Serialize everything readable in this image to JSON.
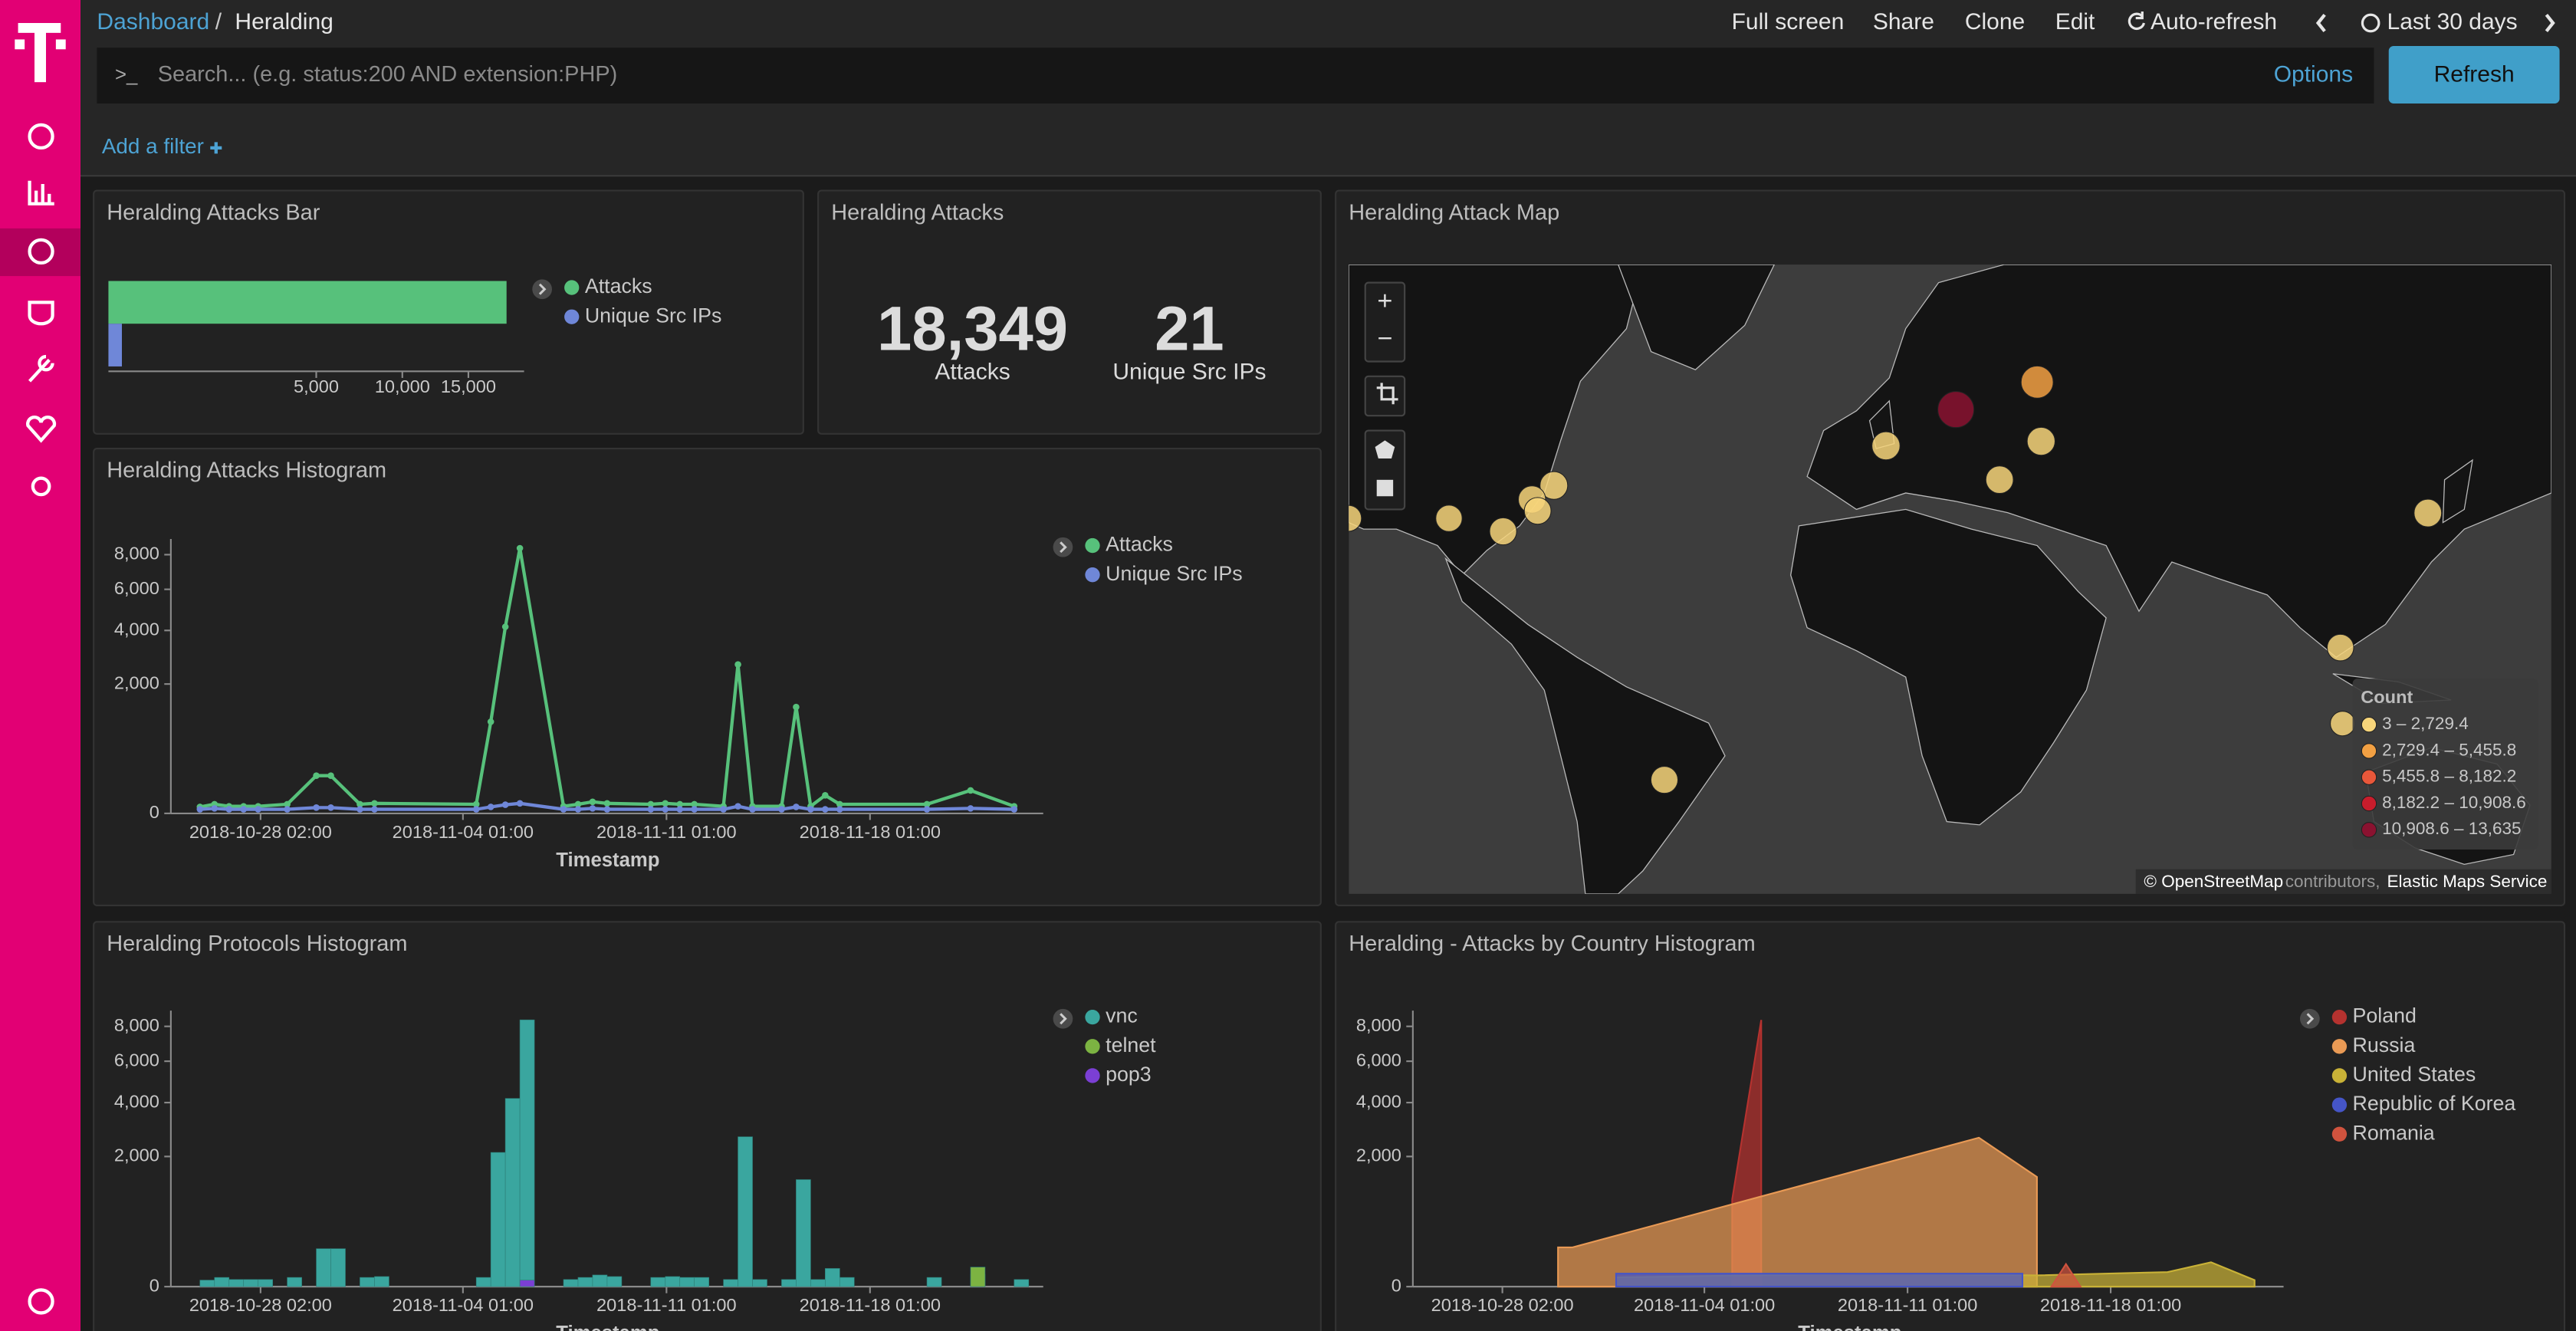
{
  "nav": {
    "breadcrumb": [
      "Dashboard",
      "Heralding"
    ],
    "separator": "/",
    "menu": [
      "Full screen",
      "Share",
      "Clone",
      "Edit",
      "Auto-refresh",
      "Last 30 days"
    ]
  },
  "query": {
    "prompt": ">_",
    "placeholder": "Search... (e.g. status:200 AND extension:PHP)",
    "options": "Options",
    "refresh": "Refresh"
  },
  "filter": {
    "add": "Add a filter"
  },
  "chart_data": [
    {
      "type": "hbar",
      "title": "Heralding Attacks Bar",
      "scale": "sqrt",
      "xlim": [
        0,
        20000
      ],
      "xticks": [
        {
          "value": 5000,
          "label": "5,000"
        },
        {
          "value": 10000,
          "label": "10,000"
        },
        {
          "value": 15000,
          "label": "15,000"
        }
      ],
      "series": [
        {
          "name": "Attacks",
          "color": "#57c17b",
          "values": [
            18349
          ]
        },
        {
          "name": "Unique Src IPs",
          "color": "#6f87d8",
          "values": [
            21
          ]
        }
      ]
    },
    {
      "type": "metric",
      "title": "Heralding Attacks",
      "categories": [
        "Attacks",
        "Unique Src IPs"
      ],
      "values": [
        18349,
        21
      ],
      "value_labels": [
        "18,349",
        "21"
      ]
    },
    {
      "type": "map",
      "title": "Heralding Attack Map",
      "controls": [
        "+",
        "−"
      ],
      "legend_title": "Count",
      "legend": [
        {
          "from": 3,
          "to": 2729.4,
          "label": "3 – 2,729.4",
          "color": "#f7d57a"
        },
        {
          "from": 2729.4,
          "to": 5455.8,
          "label": "2,729.4 – 5,455.8",
          "color": "#f2a043"
        },
        {
          "from": 5455.8,
          "to": 8182.2,
          "label": "5,455.8 – 8,182.2",
          "color": "#e8573a"
        },
        {
          "from": 8182.2,
          "to": 10908.6,
          "label": "8,182.2 – 10,908.6",
          "color": "#c81d2c"
        },
        {
          "from": 10908.6,
          "to": 13635,
          "label": "10,908.6 – 13,635",
          "color": "#8a1230"
        }
      ],
      "points": [
        {
          "lon": 19,
          "lat": 52,
          "value": 13635
        },
        {
          "lon": 37.6,
          "lat": 55.7,
          "value": 3200
        },
        {
          "lon": 3,
          "lat": 46.6,
          "value": 310
        },
        {
          "lon": 38.5,
          "lat": 47.3,
          "value": 260
        },
        {
          "lon": 29,
          "lat": 41,
          "value": 180
        },
        {
          "lon": -73,
          "lat": 40,
          "value": 220
        },
        {
          "lon": -78,
          "lat": 37.5,
          "value": 150
        },
        {
          "lon": -76.7,
          "lat": 35.4,
          "value": 90
        },
        {
          "lon": -84.6,
          "lat": 31.5,
          "value": 120
        },
        {
          "lon": -97,
          "lat": 34,
          "value": 60
        },
        {
          "lon": -120,
          "lat": 34,
          "value": 40
        },
        {
          "lon": 127,
          "lat": 35,
          "value": 200
        },
        {
          "lon": 107,
          "lat": 6.6,
          "value": 70
        },
        {
          "lon": 107.5,
          "lat": -10.7,
          "value": 3
        },
        {
          "lon": -47.7,
          "lat": -23,
          "value": 110
        }
      ],
      "attribution": [
        "© OpenStreetMap",
        "contributors,",
        "Elastic Maps Service"
      ]
    },
    {
      "type": "line",
      "title": "Heralding Attacks Histogram",
      "xlabel": "Timestamp",
      "scale": "sqrt",
      "xlim": [
        "2018-10-25 00:00",
        "2018-11-24 00:00"
      ],
      "xticks": [
        "2018-10-28 02:00",
        "2018-11-04 01:00",
        "2018-11-11 01:00",
        "2018-11-18 01:00"
      ],
      "ylim": [
        0,
        9000
      ],
      "yticks": [
        0,
        {
          "value": 2000,
          "label": "2,000"
        },
        {
          "value": 4000,
          "label": "4,000"
        },
        {
          "value": 6000,
          "label": "6,000"
        },
        {
          "value": 8000,
          "label": "8,000"
        }
      ],
      "x": [
        "2018-10-26 00:00",
        "2018-10-26 12:00",
        "2018-10-27 00:00",
        "2018-10-27 12:00",
        "2018-10-28 00:00",
        "2018-10-29 00:00",
        "2018-10-30 00:00",
        "2018-10-30 12:00",
        "2018-10-31 12:00",
        "2018-11-01 00:00",
        "2018-11-04 12:00",
        "2018-11-05 00:00",
        "2018-11-05 12:00",
        "2018-11-06 00:00",
        "2018-11-07 12:00",
        "2018-11-08 00:00",
        "2018-11-08 12:00",
        "2018-11-09 00:00",
        "2018-11-10 12:00",
        "2018-11-11 00:00",
        "2018-11-11 12:00",
        "2018-11-12 00:00",
        "2018-11-13 00:00",
        "2018-11-13 12:00",
        "2018-11-14 00:00",
        "2018-11-15 00:00",
        "2018-11-15 12:00",
        "2018-11-16 00:00",
        "2018-11-16 12:00",
        "2018-11-17 00:00",
        "2018-11-20 00:00",
        "2018-11-21 12:00",
        "2018-11-23 00:00"
      ],
      "series": [
        {
          "name": "Attacks",
          "color": "#57c17b",
          "values": [
            5,
            10,
            6,
            6,
            6,
            10,
            170,
            170,
            10,
            12,
            10,
            1004,
            4162,
            8405,
            6,
            10,
            16,
            12,
            10,
            12,
            10,
            10,
            6,
            2652,
            6,
            6,
            1353,
            6,
            39,
            10,
            10,
            63,
            6
          ]
        },
        {
          "name": "Unique Src IPs",
          "color": "#6f87d8",
          "values": [
            2,
            3,
            2,
            2,
            2,
            2,
            4,
            4,
            2,
            2,
            2,
            5,
            9,
            12,
            2,
            2,
            3,
            2,
            2,
            2,
            2,
            2,
            2,
            6,
            2,
            2,
            5,
            2,
            2,
            2,
            2,
            3,
            2
          ]
        }
      ]
    },
    {
      "type": "bar",
      "title": "Heralding Protocols Histogram",
      "xlabel": "Timestamp",
      "scale": "sqrt",
      "xlim": [
        "2018-10-25 00:00",
        "2018-11-24 00:00"
      ],
      "xticks": [
        "2018-10-28 02:00",
        "2018-11-04 01:00",
        "2018-11-11 01:00",
        "2018-11-18 01:00"
      ],
      "ylim": [
        0,
        9000
      ],
      "yticks": [
        0,
        {
          "value": 2000,
          "label": "2,000"
        },
        {
          "value": 4000,
          "label": "4,000"
        },
        {
          "value": 6000,
          "label": "6,000"
        },
        {
          "value": 8000,
          "label": "8,000"
        }
      ],
      "series": [
        {
          "name": "vnc",
          "color": "#3aa69f",
          "x": [
            "2018-10-26 00:00",
            "2018-10-26 12:00",
            "2018-10-27 00:00",
            "2018-10-27 12:00",
            "2018-10-28 00:00",
            "2018-10-29 00:00",
            "2018-10-30 00:00",
            "2018-10-30 12:00",
            "2018-10-31 12:00",
            "2018-11-01 00:00",
            "2018-11-04 12:00",
            "2018-11-05 00:00",
            "2018-11-05 12:00",
            "2018-11-06 00:00",
            "2018-11-07 12:00",
            "2018-11-08 00:00",
            "2018-11-08 12:00",
            "2018-11-09 00:00",
            "2018-11-10 12:00",
            "2018-11-11 00:00",
            "2018-11-11 12:00",
            "2018-11-12 00:00",
            "2018-11-13 00:00",
            "2018-11-13 12:00",
            "2018-11-14 00:00",
            "2018-11-15 00:00",
            "2018-11-15 12:00",
            "2018-11-16 00:00",
            "2018-11-16 12:00",
            "2018-11-17 00:00",
            "2018-11-20 00:00",
            "2018-11-21 12:00",
            "2018-11-23 00:00"
          ],
          "values": [
            5,
            10,
            6,
            6,
            6,
            10,
            170,
            170,
            10,
            12,
            10,
            2127,
            4183,
            8404,
            6,
            10,
            16,
            12,
            10,
            12,
            10,
            10,
            6,
            2652,
            6,
            6,
            1353,
            6,
            39,
            10,
            10,
            18,
            6
          ]
        },
        {
          "name": "telnet",
          "color": "#7cb342",
          "x": [
            "2018-11-21 12:00"
          ],
          "values": [
            45
          ]
        },
        {
          "name": "pop3",
          "color": "#7b3fd4",
          "x": [
            "2018-11-06 00:00"
          ],
          "values": [
            5
          ]
        }
      ]
    },
    {
      "type": "area",
      "title": "Heralding - Attacks by Country Histogram",
      "xlabel": "Timestamp",
      "scale": "sqrt",
      "xlim": [
        "2018-10-25 00:00",
        "2018-11-24 00:00"
      ],
      "xticks": [
        "2018-10-28 02:00",
        "2018-11-04 01:00",
        "2018-11-11 01:00",
        "2018-11-18 01:00"
      ],
      "ylim": [
        0,
        9000
      ],
      "yticks": [
        0,
        {
          "value": 2000,
          "label": "2,000"
        },
        {
          "value": 4000,
          "label": "4,000"
        },
        {
          "value": 6000,
          "label": "6,000"
        },
        {
          "value": 8000,
          "label": "8,000"
        }
      ],
      "series": [
        {
          "name": "Poland",
          "color": "#b5322f",
          "x": [
            "2018-11-05 00:00",
            "2018-11-06 00:00"
          ],
          "values": [
            900,
            8400
          ]
        },
        {
          "name": "Russia",
          "color": "#e99a55",
          "x": [
            "2018-10-30 00:00",
            "2018-10-30 12:00",
            "2018-11-13 12:00",
            "2018-11-15 12:00"
          ],
          "values": [
            182,
            182,
            2620,
            1420
          ]
        },
        {
          "name": "United States",
          "color": "#c9b237",
          "x": [
            "2018-11-01 00:00",
            "2018-11-09 12:00",
            "2018-11-15 12:00",
            "2018-11-20 00:00",
            "2018-11-21 12:00",
            "2018-11-23 00:00"
          ],
          "values": [
            10,
            20,
            15,
            25,
            70,
            5
          ]
        },
        {
          "name": "Republic of Korea",
          "color": "#4555c7",
          "x": [
            "2018-11-01 00:00",
            "2018-11-15 00:00"
          ],
          "values": [
            20,
            20
          ]
        },
        {
          "name": "Romania",
          "color": "#d0533e",
          "x": [
            "2018-11-16 00:00",
            "2018-11-16 12:00",
            "2018-11-17 00:00"
          ],
          "values": [
            0,
            60,
            0
          ]
        }
      ]
    }
  ]
}
